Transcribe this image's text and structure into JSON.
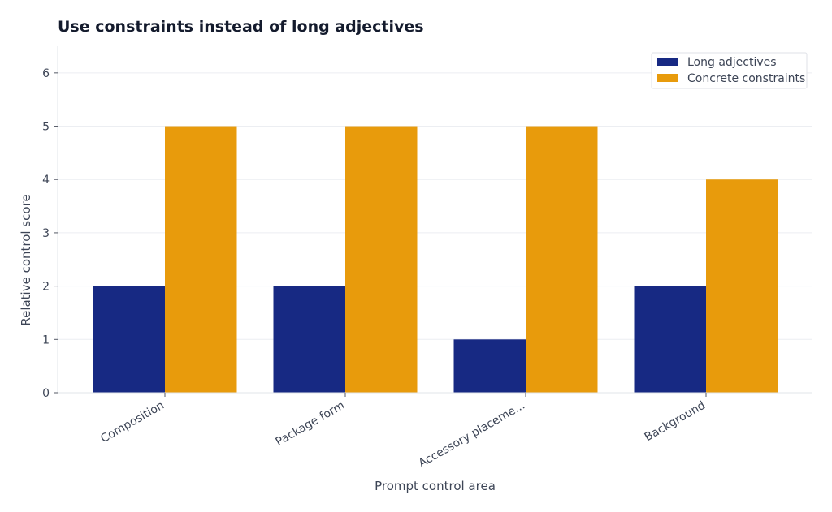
{
  "chart_data": {
    "type": "bar",
    "title": "Use constraints instead of long adjectives",
    "xlabel": "Prompt control area",
    "ylabel": "Relative control score",
    "categories": [
      "Composition",
      "Package form",
      "Accessory placeme...",
      "Background"
    ],
    "series": [
      {
        "name": "Long adjectives",
        "values": [
          2,
          2,
          1,
          2
        ],
        "color": "#172983"
      },
      {
        "name": "Concrete constraints",
        "values": [
          5,
          5,
          5,
          4
        ],
        "color": "#e89b0c"
      }
    ],
    "ylim": [
      0,
      6.5
    ],
    "yticks": [
      0,
      1,
      2,
      3,
      4,
      5,
      6
    ],
    "grid": true,
    "legend": "top-right"
  }
}
